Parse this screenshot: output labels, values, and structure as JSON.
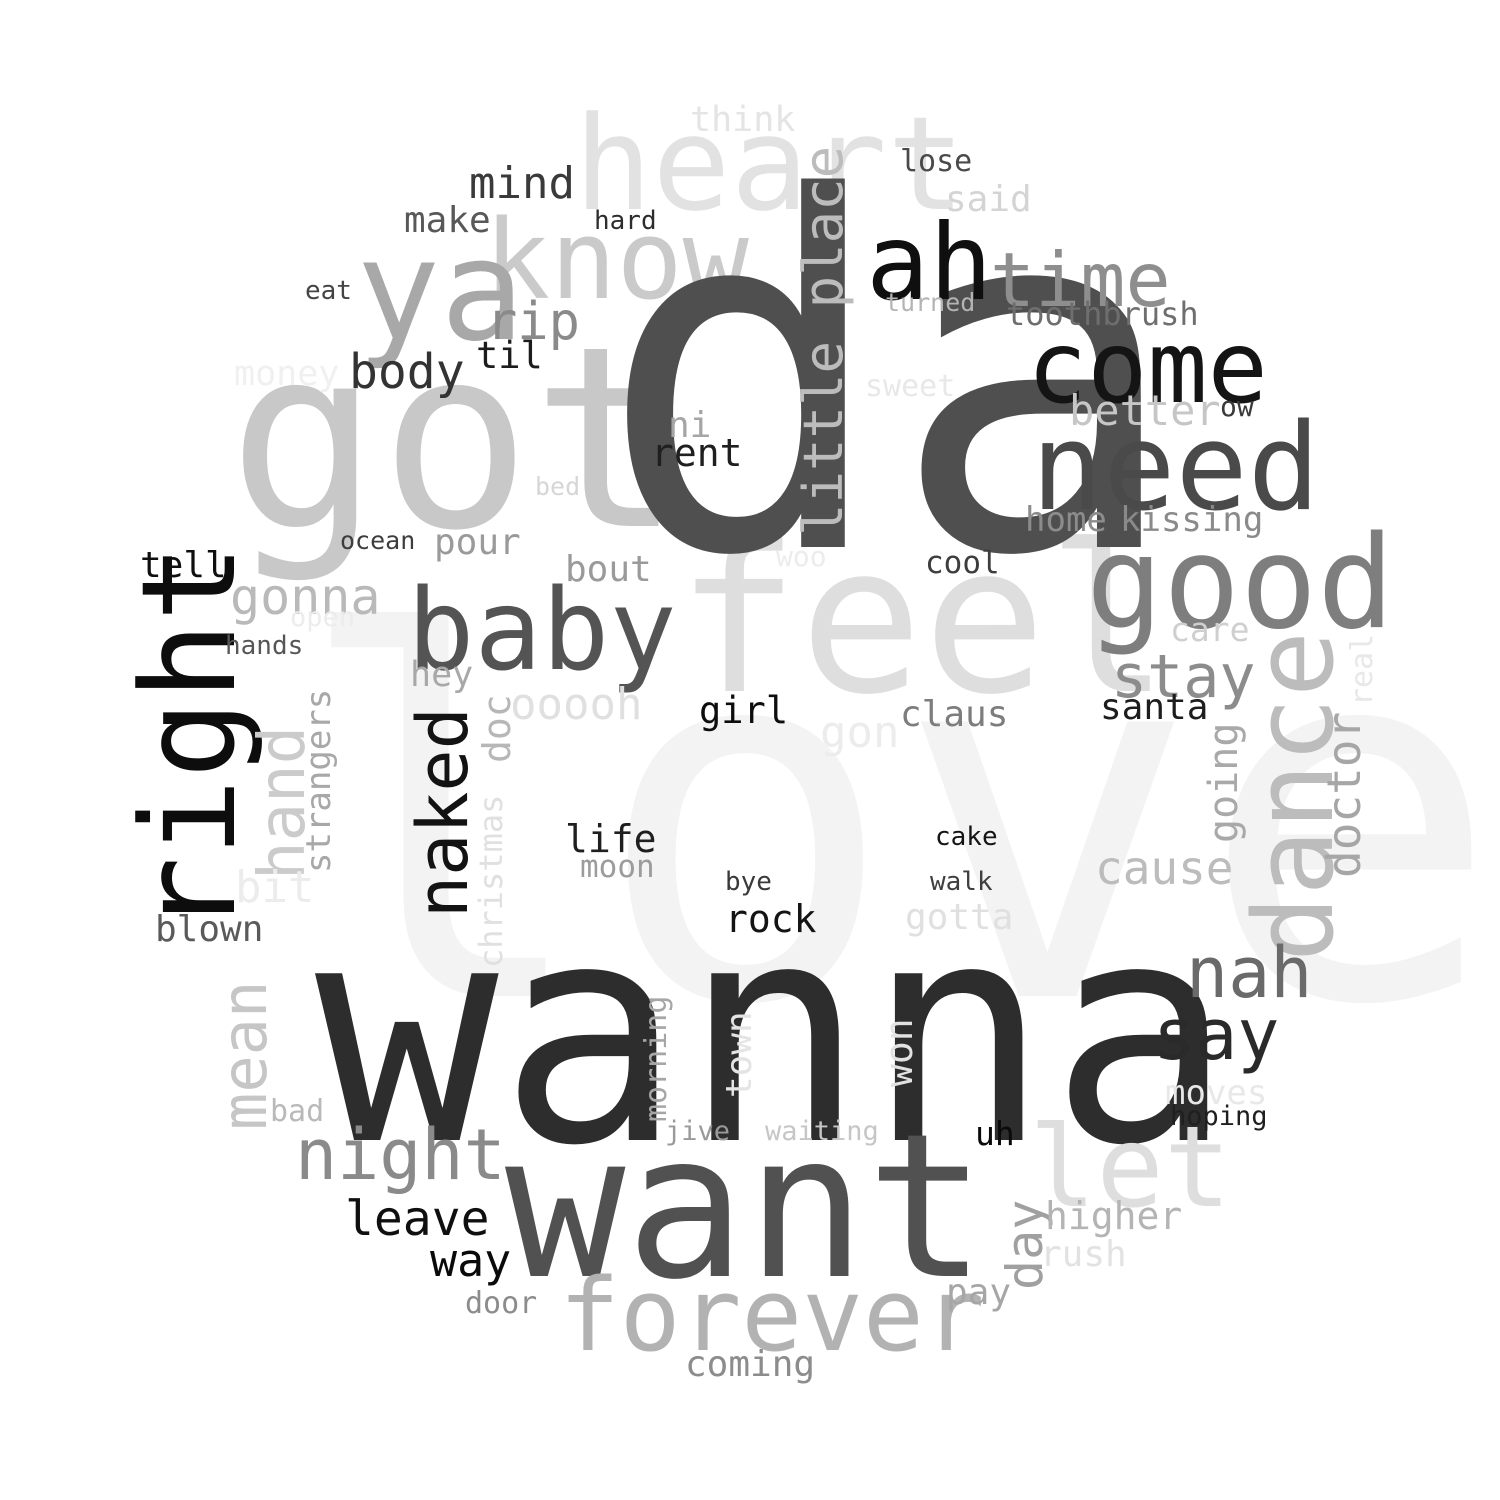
{
  "words": [
    {
      "text": "love",
      "color": "#f3f3f3"
    },
    {
      "text": "got",
      "color": "#c8c8c8"
    },
    {
      "text": "heart",
      "color": "#e2e2e2"
    },
    {
      "text": "think",
      "color": "#e4e4e4"
    },
    {
      "text": "feel",
      "color": "#dedede"
    },
    {
      "text": "know",
      "color": "#cacaca"
    },
    {
      "text": "ya",
      "color": "#a8a8a8"
    },
    {
      "text": "da",
      "color": "#4f4f4f"
    },
    {
      "text": "wanna",
      "color": "#2d2d2d"
    },
    {
      "text": "want",
      "color": "#515151"
    },
    {
      "text": "forever",
      "color": "#b2b2b2"
    },
    {
      "text": "let",
      "color": "#dedede"
    },
    {
      "text": "ah",
      "color": "#0f0f0f"
    },
    {
      "text": "come",
      "color": "#141414"
    },
    {
      "text": "need",
      "color": "#4a4a4a"
    },
    {
      "text": "time",
      "color": "#8e8e8e"
    },
    {
      "text": "good",
      "color": "#7e7e7e"
    },
    {
      "text": "dance",
      "color": "#bcbcbc"
    },
    {
      "text": "baby",
      "color": "#545454"
    },
    {
      "text": "right",
      "color": "#0d0d0d"
    },
    {
      "text": "mind",
      "color": "#3a3a3a"
    },
    {
      "text": "lose",
      "color": "#4a4a4a"
    },
    {
      "text": "said",
      "color": "#d4d4d4"
    },
    {
      "text": "make",
      "color": "#585858"
    },
    {
      "text": "hard",
      "color": "#2d2d2d"
    },
    {
      "text": "eat",
      "color": "#444444"
    },
    {
      "text": "turned",
      "color": "#b4b4b4"
    },
    {
      "text": "toothbrush",
      "color": "#6e6e6e"
    },
    {
      "text": "rip",
      "color": "#8a8a8a"
    },
    {
      "text": "til",
      "color": "#1c1c1c"
    },
    {
      "text": "body",
      "color": "#333333"
    },
    {
      "text": "money",
      "color": "#f0f0f0"
    },
    {
      "text": "little place",
      "color": "#bcbcbc"
    },
    {
      "text": "sweet",
      "color": "#e8e8e8"
    },
    {
      "text": "better",
      "color": "#c6c6c6"
    },
    {
      "text": "ow",
      "color": "#3a3a3a"
    },
    {
      "text": "ni",
      "color": "#a5a5a5"
    },
    {
      "text": "rent",
      "color": "#1f1f1f"
    },
    {
      "text": "bed",
      "color": "#d6d6d6"
    },
    {
      "text": "home",
      "color": "#8c8c8c"
    },
    {
      "text": "kissing",
      "color": "#8a8a8a"
    },
    {
      "text": "ocean",
      "color": "#3d3d3d"
    },
    {
      "text": "pour",
      "color": "#9a9a9a"
    },
    {
      "text": "tell",
      "color": "#0f0f0f"
    },
    {
      "text": "bout",
      "color": "#9a9a9a"
    },
    {
      "text": "woo",
      "color": "#ececec"
    },
    {
      "text": "cool",
      "color": "#3d3d3d"
    },
    {
      "text": "gonna",
      "color": "#b9b9b9"
    },
    {
      "text": "open",
      "color": "#ececec"
    },
    {
      "text": "hands",
      "color": "#565656"
    },
    {
      "text": "care",
      "color": "#cfcfcf"
    },
    {
      "text": "real",
      "color": "#e8e8e8"
    },
    {
      "text": "stay",
      "color": "#8c8c8c"
    },
    {
      "text": "hey",
      "color": "#a8a8a8"
    },
    {
      "text": "ooooh",
      "color": "#e0e0e0"
    },
    {
      "text": "girl",
      "color": "#0d0d0d"
    },
    {
      "text": "gon",
      "color": "#ececec"
    },
    {
      "text": "claus",
      "color": "#7d7d7d"
    },
    {
      "text": "santa",
      "color": "#1d1d1d"
    },
    {
      "text": "doctor",
      "color": "#a6a6a6"
    },
    {
      "text": "going",
      "color": "#a9a9a9"
    },
    {
      "text": "hand",
      "color": "#cbcbcb"
    },
    {
      "text": "strangers",
      "color": "#a8a8a8"
    },
    {
      "text": "naked",
      "color": "#131313"
    },
    {
      "text": "doc",
      "color": "#b7b7b7"
    },
    {
      "text": "christmas",
      "color": "#e0e0e0"
    },
    {
      "text": "life",
      "color": "#1f1f1f"
    },
    {
      "text": "moon",
      "color": "#9c9c9c"
    },
    {
      "text": "cake",
      "color": "#151515"
    },
    {
      "text": "bye",
      "color": "#3a3a3a"
    },
    {
      "text": "walk",
      "color": "#3f3f3f"
    },
    {
      "text": "cause",
      "color": "#bcbcbc"
    },
    {
      "text": "bit",
      "color": "#ececec"
    },
    {
      "text": "blown",
      "color": "#5a5a5a"
    },
    {
      "text": "rock",
      "color": "#141414"
    },
    {
      "text": "gotta",
      "color": "#e0e0e0"
    },
    {
      "text": "nah",
      "color": "#6a6a6a"
    },
    {
      "text": "say",
      "color": "#2a2a2a"
    },
    {
      "text": "mean",
      "color": "#c6c6c6"
    },
    {
      "text": "bad",
      "color": "#b9b9b9"
    },
    {
      "text": "morning",
      "color": "#a6a6a6"
    },
    {
      "text": "town",
      "color": "#e4e4e4"
    },
    {
      "text": "won",
      "color": "#e2e2e2"
    },
    {
      "text": "moves",
      "color": "#e8e8e8"
    },
    {
      "text": "hoping",
      "color": "#1f1f1f"
    },
    {
      "text": "jive",
      "color": "#9a9a9a"
    },
    {
      "text": "waiting",
      "color": "#c6c6c6"
    },
    {
      "text": "uh",
      "color": "#0a0a0a"
    },
    {
      "text": "night",
      "color": "#8a8a8a"
    },
    {
      "text": "leave",
      "color": "#0f0f0f"
    },
    {
      "text": "way",
      "color": "#0a0a0a"
    },
    {
      "text": "day",
      "color": "#a0a0a0"
    },
    {
      "text": "higher",
      "color": "#b4b4b4"
    },
    {
      "text": "rush",
      "color": "#e2e2e2"
    },
    {
      "text": "pay",
      "color": "#a6a6a6"
    },
    {
      "text": "door",
      "color": "#8c8c8c"
    },
    {
      "text": "coming",
      "color": "#8c8c8c"
    }
  ]
}
